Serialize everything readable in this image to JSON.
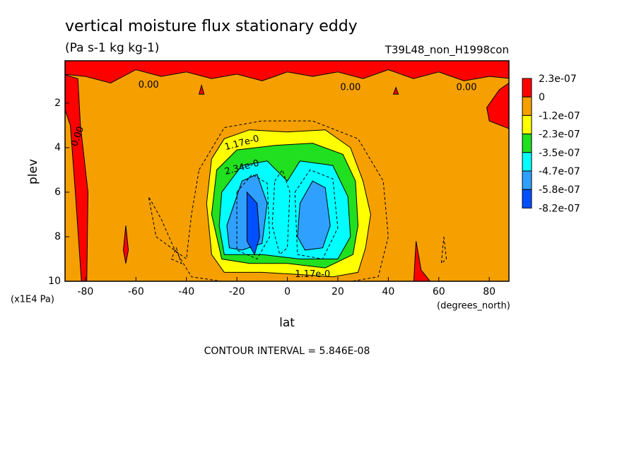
{
  "chart_data": {
    "type": "contour",
    "title": "vertical moisture flux stationary eddy",
    "subtitle": "(Pa s-1 kg kg-1)",
    "run_label": "T39L48_non_H1998con",
    "x_label": "lat",
    "x_units": "(degrees_north)",
    "y_label": "plev",
    "y_units": "(x1E4 Pa)",
    "footer": "CONTOUR INTERVAL = 5.846E-08",
    "xlim": [
      -88.1,
      87.8
    ],
    "xticks": [
      -80,
      -60,
      -40,
      -20,
      0,
      20,
      40,
      60,
      80
    ],
    "ylim": [
      10,
      0.1
    ],
    "yticks": [
      2,
      4,
      6,
      8,
      10
    ],
    "levels": [
      {
        "value": 2.3e-07,
        "label": "2.3e-07"
      },
      0,
      {
        "value": -1.2e-07,
        "label": "-1.2e-07"
      },
      {
        "value": -2.3e-07,
        "label": "-2.3e-07"
      },
      {
        "value": -3.5e-07,
        "label": "-3.5e-07"
      },
      {
        "value": -4.7e-07,
        "label": "-4.7e-07"
      },
      {
        "value": -5.8e-07,
        "label": "-5.8e-07"
      },
      {
        "value": -8.2e-07,
        "label": "-8.2e-07"
      }
    ],
    "colors": [
      "#ff0000",
      "#f5a000",
      "#ffff00",
      "#20e020",
      "#00ffff",
      "#30a0ff",
      "#0050ff"
    ],
    "annotations": [
      "0.00",
      "0.00",
      "0.00",
      "0.00",
      "1.17e-0",
      "2.34e-0",
      "1.17e-0"
    ]
  }
}
